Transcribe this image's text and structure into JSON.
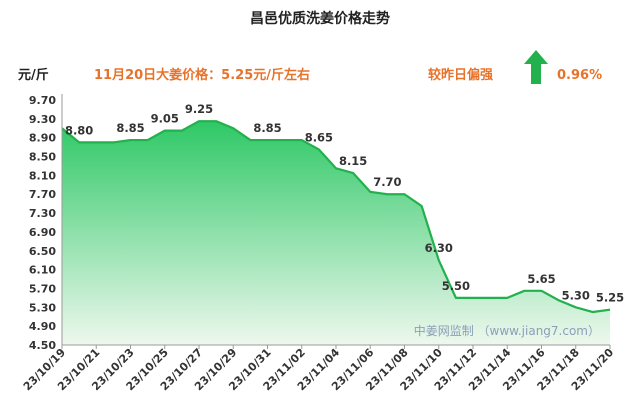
{
  "chart_data": {
    "type": "area",
    "title": "昌邑优质洗姜价格走势",
    "ylabel": "元/斤",
    "headline": "11月20日大姜价格：5.25元/斤左右",
    "change_label": "较昨日偏强",
    "change_value": "0.96%",
    "change_direction": "up",
    "watermark": "中姜网监制 （www.jiang7.com）",
    "ylim": [
      4.5,
      9.7
    ],
    "yticks": [
      "9.70",
      "9.30",
      "8.90",
      "8.50",
      "8.10",
      "7.70",
      "7.30",
      "6.90",
      "6.50",
      "6.10",
      "5.70",
      "5.30",
      "4.90",
      "4.50"
    ],
    "x_tick_labels": [
      "23/10/19",
      "23/10/21",
      "23/10/23",
      "23/10/25",
      "23/10/27",
      "23/10/29",
      "23/10/31",
      "23/11/02",
      "23/11/04",
      "23/11/06",
      "23/11/08",
      "23/11/10",
      "23/11/12",
      "23/11/14",
      "23/11/16",
      "23/11/18",
      "23/11/20"
    ],
    "x": [
      "23/10/19",
      "23/10/20",
      "23/10/21",
      "23/10/22",
      "23/10/23",
      "23/10/24",
      "23/10/25",
      "23/10/26",
      "23/10/27",
      "23/10/28",
      "23/10/29",
      "23/10/30",
      "23/10/31",
      "23/11/01",
      "23/11/02",
      "23/11/03",
      "23/11/04",
      "23/11/05",
      "23/11/06",
      "23/11/07",
      "23/11/08",
      "23/11/09",
      "23/11/10",
      "23/11/11",
      "23/11/12",
      "23/11/13",
      "23/11/14",
      "23/11/15",
      "23/11/16",
      "23/11/17",
      "23/11/18",
      "23/11/19",
      "23/11/20"
    ],
    "values": [
      9.1,
      8.8,
      8.8,
      8.8,
      8.85,
      8.85,
      9.05,
      9.05,
      9.25,
      9.25,
      9.1,
      8.85,
      8.85,
      8.85,
      8.85,
      8.65,
      8.25,
      8.15,
      7.75,
      7.7,
      7.7,
      7.45,
      6.3,
      5.5,
      5.5,
      5.5,
      5.5,
      5.65,
      5.65,
      5.45,
      5.3,
      5.2,
      5.25
    ],
    "data_labels": [
      {
        "index": 1,
        "text": "8.80"
      },
      {
        "index": 4,
        "text": "8.85"
      },
      {
        "index": 6,
        "text": "9.05"
      },
      {
        "index": 8,
        "text": "9.25"
      },
      {
        "index": 12,
        "text": "8.85"
      },
      {
        "index": 15,
        "text": "8.65"
      },
      {
        "index": 17,
        "text": "8.15"
      },
      {
        "index": 19,
        "text": "7.70"
      },
      {
        "index": 22,
        "text": "6.30"
      },
      {
        "index": 23,
        "text": "5.50"
      },
      {
        "index": 28,
        "text": "5.65"
      },
      {
        "index": 30,
        "text": "5.30"
      },
      {
        "index": 32,
        "text": "5.25"
      }
    ],
    "colors": {
      "line": "#22b14c",
      "fill_top": "#2ec866",
      "fill_bottom": "#eef8ee",
      "accent": "#e8722a",
      "arrow": "#22b14c"
    },
    "grid": false
  }
}
